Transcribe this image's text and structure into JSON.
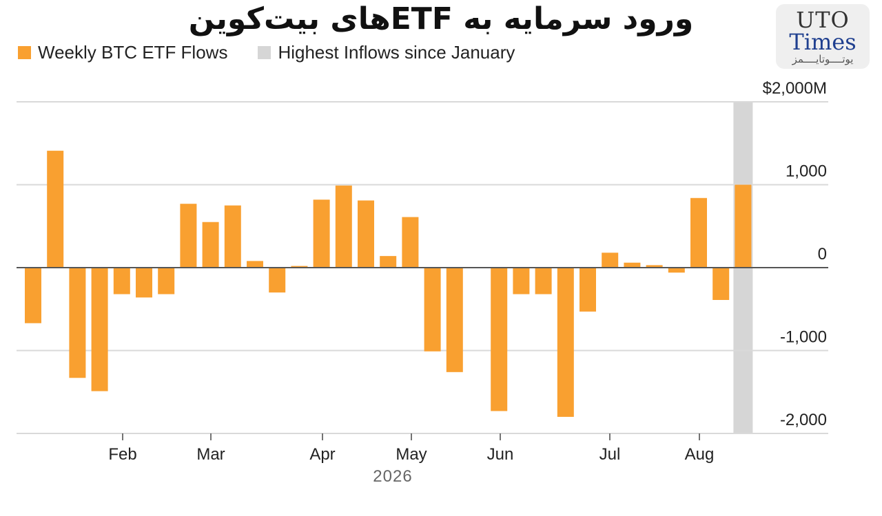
{
  "title": "ورود سرمایه به ETFهای بیت‌کوین",
  "logo": {
    "line1": "UTO",
    "line2": "Times",
    "line3": "یوتــــوتایــــمز"
  },
  "legend": [
    {
      "label": "Weekly BTC ETF Flows",
      "color": "#f9a030"
    },
    {
      "label": "Highest Inflows since January",
      "color": "#d6d6d6"
    }
  ],
  "chart_data": {
    "type": "bar",
    "ylim": [
      -2000,
      2000
    ],
    "yticks": [
      {
        "value": 2000,
        "label": "$2,000M"
      },
      {
        "value": 1000,
        "label": "1,000"
      },
      {
        "value": 0,
        "label": "0"
      },
      {
        "value": -1000,
        "label": "-1,000"
      },
      {
        "value": -2000,
        "label": "-2,000"
      }
    ],
    "xticks": [
      "Feb",
      "Mar",
      "Apr",
      "May",
      "Jun",
      "Jul",
      "Aug"
    ],
    "xlabel": "2026",
    "bar_color": "#f9a030",
    "highlight_color": "#d6d6d6",
    "highlight_index": 32,
    "values": [
      -670,
      1410,
      -1330,
      -1490,
      -320,
      -360,
      -320,
      770,
      550,
      750,
      80,
      -300,
      20,
      820,
      990,
      810,
      140,
      610,
      -1010,
      -1260,
      0,
      -1730,
      -320,
      -320,
      -1800,
      -530,
      180,
      60,
      30,
      -60,
      840,
      -390,
      1000
    ]
  }
}
